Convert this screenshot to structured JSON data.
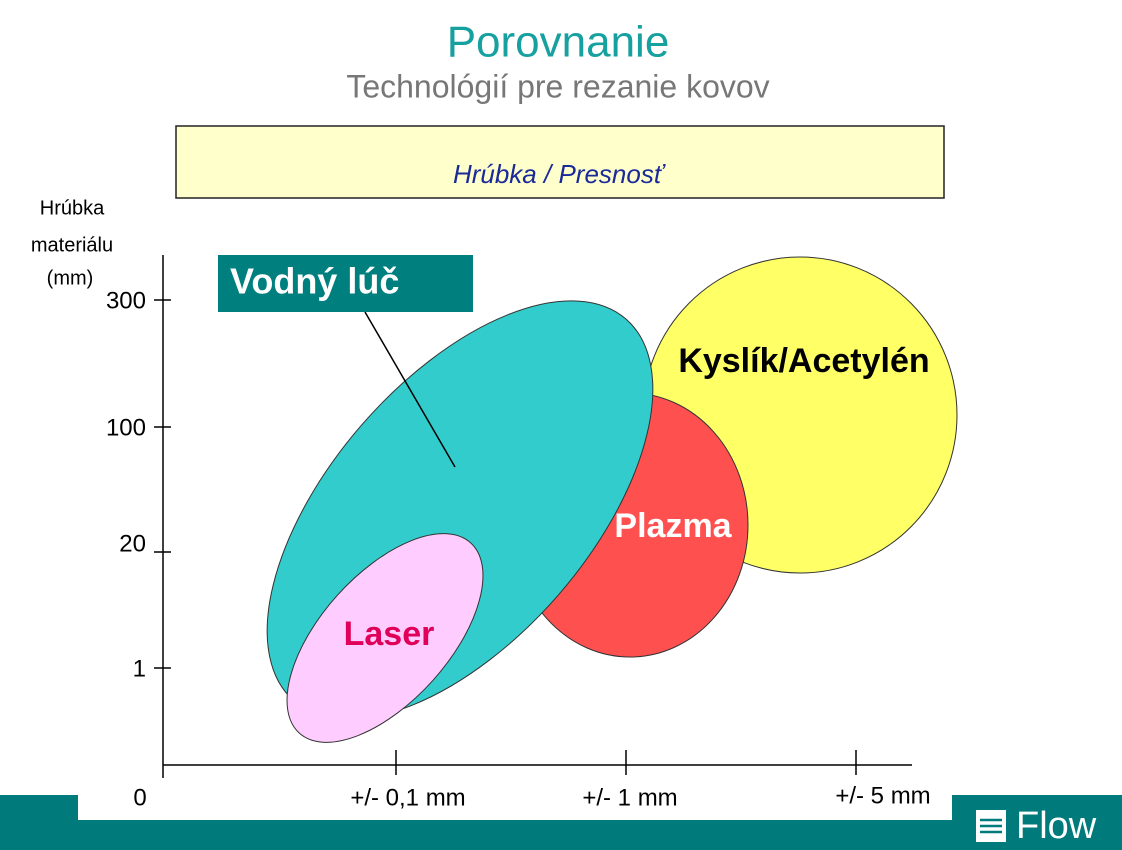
{
  "header": {
    "title": "Porovnanie",
    "subtitle": "Technológií pre rezanie kovov"
  },
  "banner": "Hrúbka / Presnosť",
  "y_axis": {
    "label_lines": [
      "Hrúbka",
      "materiálu",
      "(mm)"
    ],
    "ticks": [
      "300",
      "100",
      "20",
      "1"
    ]
  },
  "x_axis": {
    "ticks": [
      "0",
      "+/- 0,1 mm",
      "+/-  1 mm",
      "+/- 5 mm"
    ]
  },
  "regions": [
    "Kyslík/Acetylén",
    "Plazma",
    "Vodný lúč",
    "Laser"
  ],
  "logo": "Flow"
}
